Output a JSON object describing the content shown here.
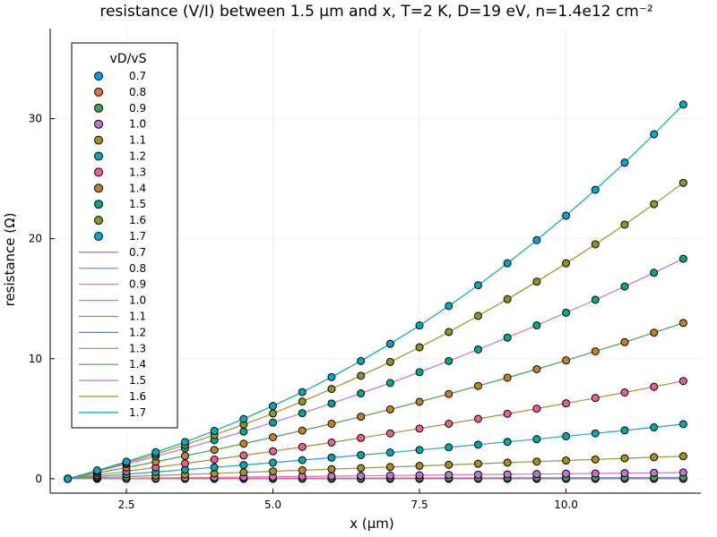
{
  "chart_data": {
    "type": "scatter",
    "title": "resistance (V/I) between 1.5 µm and x, T=2 K, D=19 eV, n=1.4e12 cm⁻²",
    "xlabel": "x (µm)",
    "ylabel": "resistance (Ω)",
    "xlim": [
      1.2,
      12.3
    ],
    "ylim": [
      -1.2,
      37.5
    ],
    "xticks": [
      2.5,
      5.0,
      7.5,
      10.0
    ],
    "xtick_labels": [
      "2.5",
      "5.0",
      "7.5",
      "10.0"
    ],
    "yticks": [
      0,
      10,
      20,
      30
    ],
    "ytick_labels": [
      "0",
      "10",
      "20",
      "30"
    ],
    "grid": true,
    "legend": {
      "title": "vD/vS",
      "position": "top-left"
    },
    "x": [
      1.5,
      2.0,
      2.5,
      3.0,
      3.5,
      4.0,
      4.5,
      5.0,
      5.5,
      6.0,
      6.5,
      7.0,
      7.5,
      8.0,
      8.5,
      9.0,
      9.5,
      10.0,
      10.5,
      11.0,
      11.5,
      12.0
    ],
    "scatter_series": [
      {
        "name": "0.7",
        "color": "#009AFA",
        "values": [
          0,
          0,
          0,
          0,
          0,
          0,
          0,
          0,
          0,
          0,
          0,
          0,
          0,
          0,
          0,
          0,
          0,
          0,
          0,
          0,
          0,
          0
        ]
      },
      {
        "name": "0.8",
        "color": "#E36F47",
        "values": [
          0,
          0,
          0,
          0,
          0,
          0,
          0,
          0,
          0,
          0,
          0,
          0,
          0,
          0,
          0,
          0,
          0,
          0,
          0,
          0,
          0,
          0
        ]
      },
      {
        "name": "0.9",
        "color": "#3EA44E",
        "values": [
          0,
          0.01,
          0.01,
          0.02,
          0.02,
          0.03,
          0.03,
          0.04,
          0.04,
          0.05,
          0.05,
          0.06,
          0.06,
          0.07,
          0.07,
          0.08,
          0.08,
          0.09,
          0.09,
          0.1,
          0.1,
          0.11
        ]
      },
      {
        "name": "1.0",
        "color": "#C371D2",
        "values": [
          0,
          0.02,
          0.04,
          0.07,
          0.09,
          0.12,
          0.14,
          0.17,
          0.19,
          0.22,
          0.24,
          0.27,
          0.29,
          0.32,
          0.34,
          0.37,
          0.39,
          0.42,
          0.44,
          0.47,
          0.49,
          0.52
        ]
      },
      {
        "name": "1.1",
        "color": "#AC8E18",
        "values": [
          0,
          0.08,
          0.17,
          0.26,
          0.35,
          0.44,
          0.53,
          0.62,
          0.71,
          0.8,
          0.89,
          0.98,
          1.07,
          1.16,
          1.25,
          1.34,
          1.43,
          1.52,
          1.61,
          1.7,
          1.79,
          1.88
        ]
      },
      {
        "name": "1.2",
        "color": "#00A9AD",
        "values": [
          0,
          0.18,
          0.37,
          0.56,
          0.75,
          0.95,
          1.14,
          1.34,
          1.55,
          1.76,
          1.97,
          2.18,
          2.4,
          2.62,
          2.84,
          3.07,
          3.3,
          3.54,
          3.78,
          4.03,
          4.28,
          4.55
        ]
      },
      {
        "name": "1.3",
        "color": "#ED5D92",
        "values": [
          0,
          0.3,
          0.62,
          0.94,
          1.27,
          1.6,
          1.94,
          2.29,
          2.65,
          3.02,
          3.4,
          3.78,
          4.18,
          4.58,
          4.99,
          5.41,
          5.84,
          6.28,
          6.73,
          7.19,
          7.66,
          8.14
        ]
      },
      {
        "name": "1.4",
        "color": "#C68125",
        "values": [
          0,
          0.46,
          0.93,
          1.41,
          1.9,
          2.4,
          2.92,
          3.46,
          4.01,
          4.58,
          5.17,
          5.78,
          6.41,
          7.06,
          7.73,
          8.42,
          9.13,
          9.86,
          10.61,
          11.38,
          12.17,
          12.98
        ]
      },
      {
        "name": "1.5",
        "color": "#00A98D",
        "values": [
          0,
          0.6,
          1.22,
          1.86,
          2.52,
          3.21,
          3.93,
          4.68,
          5.46,
          6.27,
          7.11,
          7.98,
          8.88,
          9.81,
          10.77,
          11.76,
          12.78,
          13.83,
          14.91,
          16.02,
          17.16,
          18.33
        ]
      },
      {
        "name": "1.6",
        "color": "#8E971D",
        "values": [
          0,
          0.65,
          1.33,
          2.05,
          2.82,
          3.64,
          4.51,
          5.44,
          6.43,
          7.48,
          8.58,
          9.73,
          10.95,
          12.23,
          13.57,
          14.96,
          16.42,
          17.95,
          19.53,
          21.17,
          22.88,
          24.65
        ]
      },
      {
        "name": "1.7",
        "color": "#00A8CB",
        "values": [
          0,
          0.69,
          1.42,
          2.21,
          3.06,
          3.98,
          4.98,
          6.06,
          7.22,
          8.47,
          9.81,
          11.24,
          12.77,
          14.39,
          16.12,
          17.95,
          19.88,
          21.92,
          24.07,
          26.33,
          28.7,
          31.18
        ]
      }
    ],
    "line_series": [
      {
        "name": "0.7",
        "color": "#7F7FE8",
        "values": [
          0,
          0,
          0,
          0,
          0,
          0,
          0,
          0,
          0,
          0,
          0,
          0,
          0,
          0,
          0,
          0,
          0,
          0,
          0,
          0,
          0,
          0
        ]
      },
      {
        "name": "0.8",
        "color": "#5E88E6",
        "values": [
          0,
          0,
          0,
          0,
          0,
          0,
          0,
          0,
          0,
          0,
          0,
          0,
          0,
          0,
          0,
          0,
          0,
          0,
          0,
          0,
          0,
          0
        ]
      },
      {
        "name": "0.9",
        "color": "#E8607A",
        "values": [
          0,
          0.01,
          0.01,
          0.02,
          0.02,
          0.03,
          0.03,
          0.04,
          0.04,
          0.05,
          0.05,
          0.06,
          0.06,
          0.07,
          0.07,
          0.08,
          0.08,
          0.09,
          0.09,
          0.1,
          0.1,
          0.11
        ]
      },
      {
        "name": "1.0",
        "color": "#D870C9",
        "values": [
          0,
          0.02,
          0.04,
          0.07,
          0.09,
          0.12,
          0.14,
          0.17,
          0.19,
          0.22,
          0.24,
          0.27,
          0.29,
          0.32,
          0.34,
          0.37,
          0.39,
          0.42,
          0.44,
          0.47,
          0.49,
          0.52
        ]
      },
      {
        "name": "1.1",
        "color": "#8C9A42",
        "values": [
          0,
          0.08,
          0.17,
          0.26,
          0.35,
          0.44,
          0.53,
          0.62,
          0.71,
          0.8,
          0.89,
          0.98,
          1.07,
          1.16,
          1.25,
          1.34,
          1.43,
          1.52,
          1.61,
          1.7,
          1.79,
          1.88
        ]
      },
      {
        "name": "1.2",
        "color": "#1D9FE0",
        "values": [
          0,
          0.18,
          0.37,
          0.56,
          0.75,
          0.95,
          1.14,
          1.34,
          1.55,
          1.76,
          1.97,
          2.18,
          2.4,
          2.62,
          2.84,
          3.07,
          3.3,
          3.54,
          3.78,
          4.03,
          4.28,
          4.55
        ]
      },
      {
        "name": "1.3",
        "color": "#B8862E",
        "values": [
          0,
          0.3,
          0.62,
          0.94,
          1.27,
          1.6,
          1.94,
          2.29,
          2.65,
          3.02,
          3.4,
          3.78,
          4.18,
          4.58,
          4.99,
          5.41,
          5.84,
          6.28,
          6.73,
          7.19,
          7.66,
          8.14
        ]
      },
      {
        "name": "1.4",
        "color": "#3EA44E",
        "values": [
          0,
          0.46,
          0.93,
          1.41,
          1.9,
          2.4,
          2.92,
          3.46,
          4.01,
          4.58,
          5.17,
          5.78,
          6.41,
          7.06,
          7.73,
          8.42,
          9.13,
          9.86,
          10.61,
          11.38,
          12.17,
          12.98
        ]
      },
      {
        "name": "1.5",
        "color": "#C371D2",
        "values": [
          0,
          0.6,
          1.22,
          1.86,
          2.52,
          3.21,
          3.93,
          4.68,
          5.46,
          6.27,
          7.11,
          7.98,
          8.88,
          9.81,
          10.77,
          11.76,
          12.78,
          13.83,
          14.91,
          16.02,
          17.16,
          18.33
        ]
      },
      {
        "name": "1.6",
        "color": "#AC8E18",
        "values": [
          0,
          0.65,
          1.33,
          2.05,
          2.82,
          3.64,
          4.51,
          5.44,
          6.43,
          7.48,
          8.58,
          9.73,
          10.95,
          12.23,
          13.57,
          14.96,
          16.42,
          17.95,
          19.53,
          21.17,
          22.88,
          24.65
        ]
      },
      {
        "name": "1.7",
        "color": "#00A9AD",
        "values": [
          0,
          0.69,
          1.42,
          2.21,
          3.06,
          3.98,
          4.98,
          6.06,
          7.22,
          8.47,
          9.81,
          11.24,
          12.77,
          14.39,
          16.12,
          17.95,
          19.88,
          21.92,
          24.07,
          26.33,
          28.7,
          31.18
        ]
      }
    ]
  }
}
